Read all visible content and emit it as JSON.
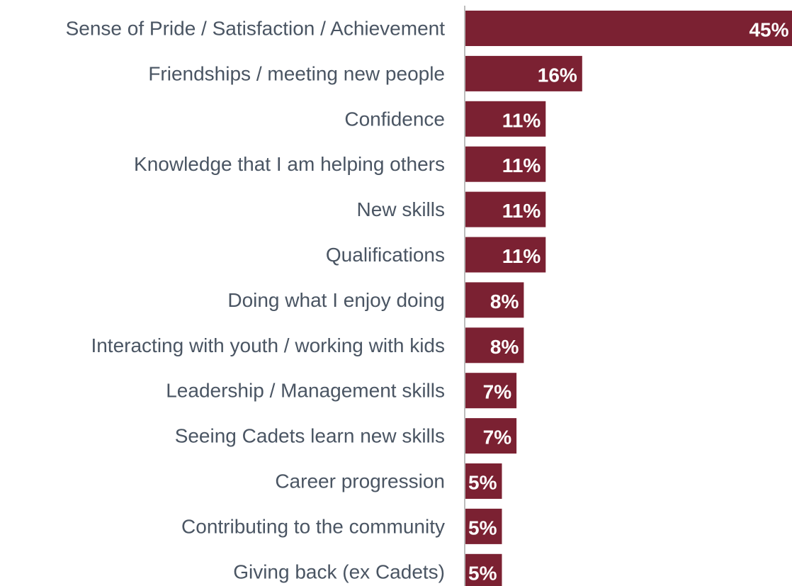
{
  "chart_data": {
    "type": "bar",
    "orientation": "horizontal",
    "title": "",
    "xlabel": "",
    "ylabel": "",
    "categories": [
      "Sense of Pride / Satisfaction / Achievement",
      "Friendships / meeting new people",
      "Confidence",
      "Knowledge that I am helping others",
      "New skills",
      "Qualifications",
      "Doing what I enjoy doing",
      "Interacting with youth / working with kids",
      "Leadership / Management skills",
      "Seeing Cadets learn new skills",
      "Career progression",
      "Contributing to the community",
      "Giving back (ex Cadets)"
    ],
    "values": [
      45,
      16,
      11,
      11,
      11,
      11,
      8,
      8,
      7,
      7,
      5,
      5,
      5
    ],
    "value_labels": [
      "45%",
      "16%",
      "11%",
      "11%",
      "11%",
      "11%",
      "8%",
      "8%",
      "7%",
      "7%",
      "5%",
      "5%",
      "5%"
    ],
    "unit": "%",
    "grid": false,
    "legend": "none",
    "bar_color": "#7b2132",
    "label_color": "#4a5563",
    "value_label_color": "#ffffff",
    "axis_color": "#a6a6a6"
  }
}
